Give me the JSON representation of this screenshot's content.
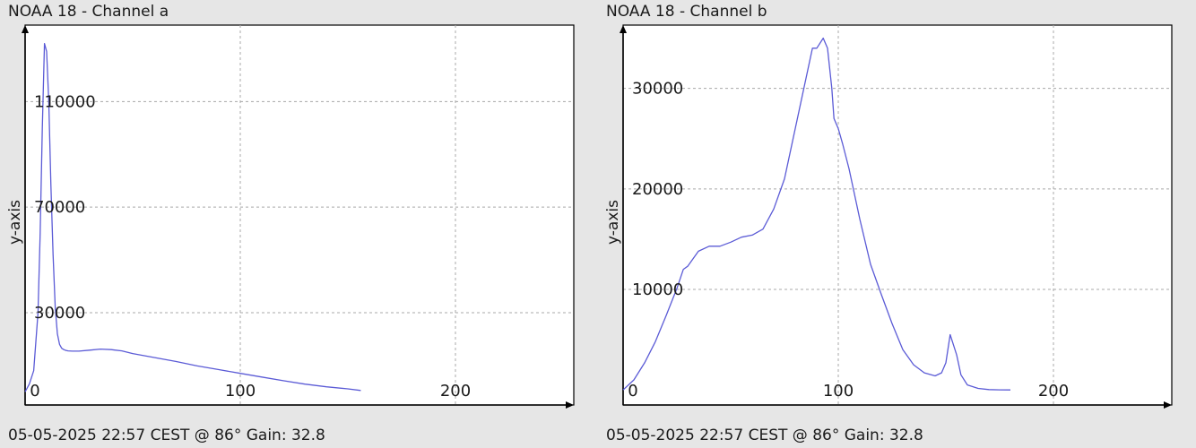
{
  "chart_data": [
    {
      "type": "line",
      "title": "NOAA 18 - Channel a",
      "footer": "05-05-2025 22:57 CEST @ 86° Gain: 32.8",
      "ylabel": "y-axis",
      "xlabel": "",
      "xlim": [
        0,
        255
      ],
      "ylim": [
        -5000,
        139000
      ],
      "grid": true,
      "xticks": [
        0,
        100,
        200
      ],
      "xtick_labels": [
        "0",
        "100",
        "200"
      ],
      "yticks": [
        30000,
        70000,
        110000
      ],
      "ytick_labels": [
        "30000",
        "70000",
        "110000"
      ],
      "show_zero_y_label": false,
      "series": [
        {
          "color": "#5b5bd6",
          "x": [
            0,
            2,
            4,
            6,
            7,
            8,
            9,
            10,
            11,
            12,
            13,
            14,
            15,
            16,
            17,
            18,
            19,
            20,
            22,
            25,
            30,
            35,
            40,
            45,
            50,
            60,
            70,
            80,
            90,
            100,
            110,
            120,
            130,
            140,
            150,
            156
          ],
          "y": [
            0,
            3000,
            8000,
            30000,
            60000,
            100000,
            132000,
            129000,
            110000,
            78000,
            52000,
            32000,
            22000,
            18000,
            16500,
            16000,
            15700,
            15500,
            15400,
            15400,
            15800,
            16200,
            16000,
            15500,
            14500,
            13000,
            11500,
            9800,
            8400,
            7000,
            5600,
            4200,
            2900,
            1900,
            1100,
            500
          ]
        }
      ]
    },
    {
      "type": "line",
      "title": "NOAA 18 - Channel b",
      "footer": "05-05-2025 22:57 CEST @ 86° Gain: 32.8",
      "ylabel": "y-axis",
      "xlabel": "",
      "xlim": [
        0,
        255
      ],
      "ylim": [
        -1500,
        36300
      ],
      "grid": true,
      "xticks": [
        0,
        100,
        200
      ],
      "xtick_labels": [
        "0",
        "100",
        "200"
      ],
      "yticks": [
        0,
        10000,
        20000,
        30000
      ],
      "ytick_labels": [
        "0",
        "10000",
        "20000",
        "30000"
      ],
      "show_zero_y_label": true,
      "series": [
        {
          "color": "#5b5bd6",
          "x": [
            0,
            5,
            10,
            15,
            20,
            25,
            28,
            30,
            35,
            40,
            45,
            50,
            55,
            60,
            65,
            70,
            75,
            80,
            85,
            88,
            90,
            93,
            95,
            97,
            98,
            100,
            102,
            105,
            110,
            115,
            120,
            125,
            130,
            135,
            140,
            145,
            148,
            150,
            152,
            155,
            157,
            160,
            165,
            170,
            175,
            180
          ],
          "y": [
            0,
            1000,
            2700,
            4800,
            7400,
            10100,
            12000,
            12300,
            13800,
            14300,
            14300,
            14700,
            15200,
            15400,
            16000,
            18000,
            21000,
            26000,
            31000,
            34000,
            34000,
            35000,
            34000,
            30000,
            27000,
            26000,
            24500,
            22000,
            17000,
            12500,
            9500,
            6600,
            4000,
            2500,
            1700,
            1400,
            1700,
            2700,
            5500,
            3500,
            1500,
            500,
            150,
            30,
            10,
            0
          ]
        }
      ]
    }
  ]
}
